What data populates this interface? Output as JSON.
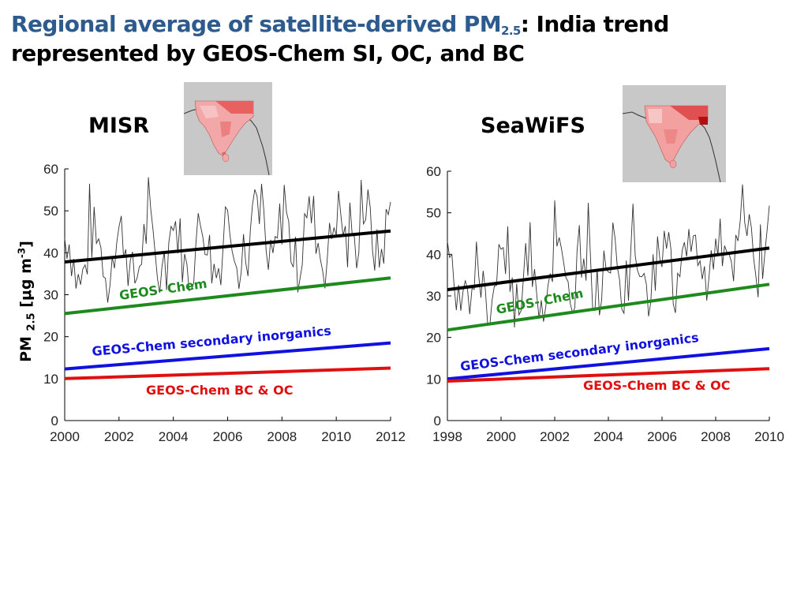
{
  "title": {
    "part1": "Regional average of satellite-derived PM",
    "sub": "2.5",
    "part2": ": India trend represented by GEOS-Chem SI, OC, and BC"
  },
  "ylabel": {
    "base": "PM",
    "sub": "2.5",
    "unit_pre": "[μg m",
    "unit_sup": "-3",
    "unit_post": "]"
  },
  "colors": {
    "title_accent": "#2d5b8e",
    "obs": "#000000",
    "geos_chem": "#1e8a1e",
    "inorganics": "#1010e0",
    "bcoc": "#e01010"
  },
  "chart_data": [
    {
      "type": "line",
      "panel_title": "MISR",
      "xlim": [
        2000,
        2012
      ],
      "ylim": [
        0,
        60
      ],
      "xticks": [
        2000,
        2002,
        2004,
        2006,
        2008,
        2010,
        2012
      ],
      "yticks": [
        0,
        10,
        20,
        30,
        40,
        50,
        60
      ],
      "monthly_seed": 7,
      "monthly_mean_trend": [
        38,
        45
      ],
      "series": [
        {
          "name": "",
          "color": "#000000",
          "values": [
            [
              2000,
              37.8
            ],
            [
              2012,
              45.2
            ]
          ]
        },
        {
          "name": "GEOS- Chem",
          "color": "#1e8a1e",
          "values": [
            [
              2000,
              25.5
            ],
            [
              2012,
              34.0
            ]
          ]
        },
        {
          "name": "GEOS-Chem secondary inorganics",
          "color": "#1010e0",
          "values": [
            [
              2000,
              12.3
            ],
            [
              2012,
              18.5
            ]
          ]
        },
        {
          "name": "GEOS-Chem BC & OC",
          "color": "#e01010",
          "values": [
            [
              2000,
              10.0
            ],
            [
              2012,
              12.5
            ]
          ]
        }
      ]
    },
    {
      "type": "line",
      "panel_title": "SeaWiFS",
      "xlim": [
        1998,
        2010
      ],
      "ylim": [
        0,
        60
      ],
      "xticks": [
        1998,
        2000,
        2002,
        2004,
        2006,
        2008,
        2010
      ],
      "yticks": [
        0,
        10,
        20,
        30,
        40,
        50,
        60
      ],
      "monthly_seed": 19,
      "monthly_mean_trend": [
        31,
        41
      ],
      "series": [
        {
          "name": "",
          "color": "#000000",
          "values": [
            [
              1998,
              31.5
            ],
            [
              2010,
              41.5
            ]
          ]
        },
        {
          "name": "GEOS- Chem",
          "color": "#1e8a1e",
          "values": [
            [
              1998,
              21.8
            ],
            [
              2010,
              32.8
            ]
          ]
        },
        {
          "name": "GEOS-Chem secondary inorganics",
          "color": "#1010e0",
          "values": [
            [
              1998,
              10.0
            ],
            [
              2010,
              17.3
            ]
          ]
        },
        {
          "name": "GEOS-Chem BC & OC",
          "color": "#e01010",
          "values": [
            [
              1998,
              9.5
            ],
            [
              2010,
              12.5
            ]
          ]
        }
      ]
    }
  ]
}
